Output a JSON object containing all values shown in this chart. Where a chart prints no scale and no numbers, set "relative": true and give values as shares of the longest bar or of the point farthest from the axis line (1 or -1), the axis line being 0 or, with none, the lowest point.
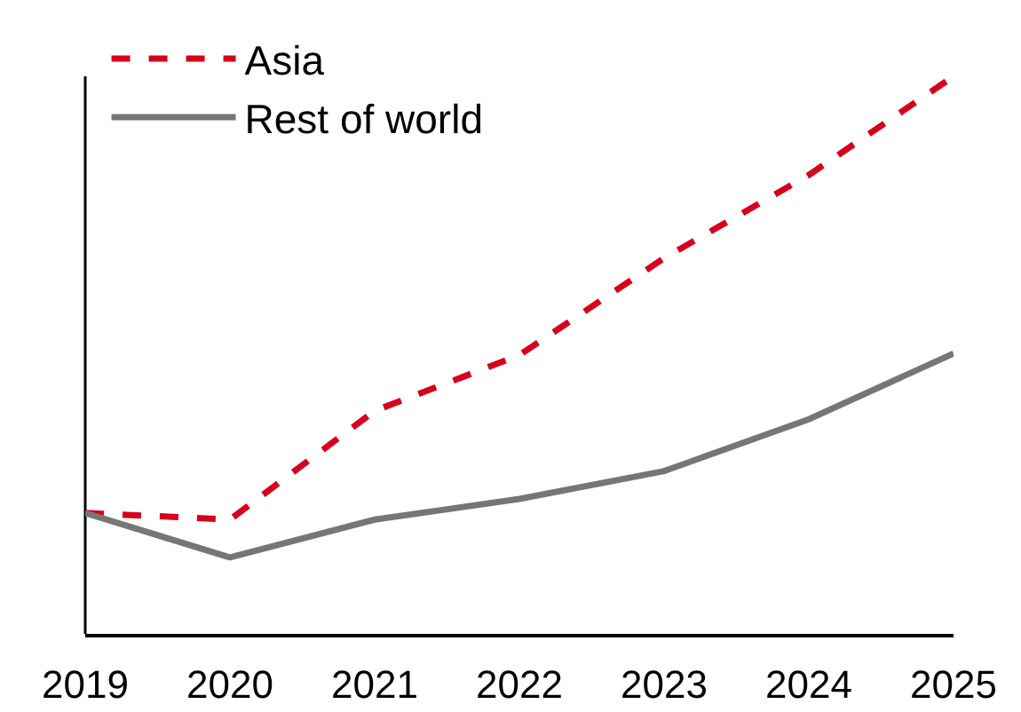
{
  "chart_data": {
    "type": "line",
    "relative": true,
    "x": [
      2019,
      2020,
      2021,
      2022,
      2023,
      2024,
      2025
    ],
    "xlim": [
      2019,
      2025
    ],
    "xticks": [
      2019,
      2020,
      2021,
      2022,
      2023,
      2024,
      2025
    ],
    "legend": "top left",
    "grid": false,
    "series": [
      {
        "name": "Asia",
        "color": "#d7001b",
        "line_style": "dashed",
        "values": [
          0.217,
          0.205,
          0.4,
          0.5,
          0.674,
          0.823,
          1
        ]
      },
      {
        "name": "Rest of world",
        "color": "#767676",
        "line_style": "solid",
        "values": [
          0.217,
          0.137,
          0.205,
          0.242,
          0.292,
          0.385,
          0.503
        ]
      }
    ]
  }
}
